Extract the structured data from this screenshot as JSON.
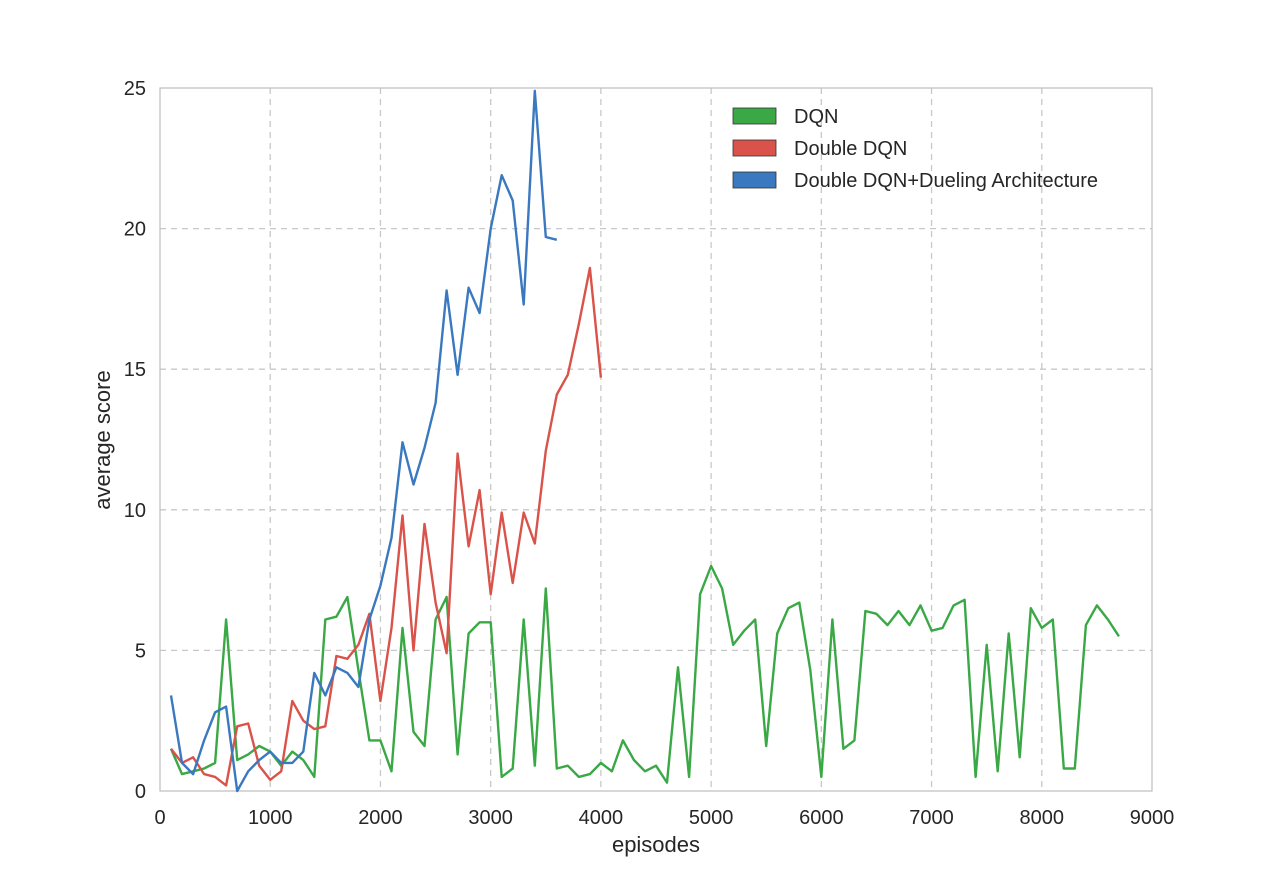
{
  "chart_data": {
    "type": "line",
    "title": "",
    "xlabel": "episodes",
    "ylabel": "average score",
    "xlim": [
      0,
      9000
    ],
    "ylim": [
      0,
      25
    ],
    "xticks": [
      0,
      1000,
      2000,
      3000,
      4000,
      5000,
      6000,
      7000,
      8000,
      9000
    ],
    "yticks": [
      0,
      5,
      10,
      15,
      20,
      25
    ],
    "grid": true,
    "legend_position": "top-right",
    "series": [
      {
        "name": "DQN",
        "color": "#3aa845",
        "x": [
          100,
          200,
          300,
          400,
          500,
          600,
          700,
          800,
          900,
          1000,
          1100,
          1200,
          1300,
          1400,
          1500,
          1600,
          1700,
          1800,
          1900,
          2000,
          2100,
          2200,
          2300,
          2400,
          2500,
          2600,
          2700,
          2800,
          2900,
          3000,
          3100,
          3200,
          3300,
          3400,
          3500,
          3600,
          3700,
          3800,
          3900,
          4000,
          4100,
          4200,
          4300,
          4400,
          4500,
          4600,
          4700,
          4800,
          4900,
          5000,
          5100,
          5200,
          5300,
          5400,
          5500,
          5600,
          5700,
          5800,
          5900,
          6000,
          6100,
          6200,
          6300,
          6400,
          6500,
          6600,
          6700,
          6800,
          6900,
          7000,
          7100,
          7200,
          7300,
          7400,
          7500,
          7600,
          7700,
          7800,
          7900,
          8000,
          8100,
          8200,
          8300,
          8400,
          8500,
          8600,
          8700
        ],
        "values": [
          1.5,
          0.6,
          0.7,
          0.8,
          1.0,
          6.1,
          1.1,
          1.3,
          1.6,
          1.4,
          0.9,
          1.4,
          1.1,
          0.5,
          6.1,
          6.2,
          6.9,
          4.3,
          1.8,
          1.8,
          0.7,
          5.8,
          2.1,
          1.6,
          6.1,
          6.9,
          1.3,
          5.6,
          6.0,
          6.0,
          0.5,
          0.8,
          6.1,
          0.9,
          7.2,
          0.8,
          0.9,
          0.5,
          0.6,
          1.0,
          0.7,
          1.8,
          1.1,
          0.7,
          0.9,
          0.3,
          4.4,
          0.5,
          7.0,
          8.0,
          7.2,
          5.2,
          5.7,
          6.1,
          1.6,
          5.6,
          6.5,
          6.7,
          4.3,
          0.5,
          6.1,
          1.5,
          1.8,
          6.4,
          6.3,
          5.9,
          6.4,
          5.9,
          6.6,
          5.7,
          5.8,
          6.6,
          6.8,
          0.5,
          5.2,
          0.7,
          5.6,
          1.2,
          6.5,
          5.8,
          6.1,
          0.8,
          0.8,
          5.9,
          6.6,
          6.1,
          5.5
        ]
      },
      {
        "name": "Double DQN",
        "color": "#d9534a",
        "x": [
          100,
          200,
          300,
          400,
          500,
          600,
          700,
          800,
          900,
          1000,
          1100,
          1200,
          1300,
          1400,
          1500,
          1600,
          1700,
          1800,
          1900,
          2000,
          2100,
          2200,
          2300,
          2400,
          2500,
          2600,
          2700,
          2800,
          2900,
          3000,
          3100,
          3200,
          3300,
          3400,
          3500,
          3600,
          3700,
          3800,
          3900,
          4000
        ],
        "values": [
          1.5,
          1.0,
          1.2,
          0.6,
          0.5,
          0.2,
          2.3,
          2.4,
          0.9,
          0.4,
          0.7,
          3.2,
          2.5,
          2.2,
          2.3,
          4.8,
          4.7,
          5.2,
          6.3,
          3.2,
          5.8,
          9.8,
          5.0,
          9.5,
          6.7,
          4.9,
          12.0,
          8.7,
          10.7,
          7.0,
          9.9,
          7.4,
          9.9,
          8.8,
          12.1,
          14.1,
          14.8,
          16.6,
          18.6,
          14.7
        ]
      },
      {
        "name": "Double DQN+Dueling Architecture",
        "color": "#3a78bf",
        "x": [
          100,
          200,
          300,
          400,
          500,
          600,
          700,
          800,
          900,
          1000,
          1100,
          1200,
          1300,
          1400,
          1500,
          1600,
          1700,
          1800,
          1900,
          2000,
          2100,
          2200,
          2300,
          2400,
          2500,
          2600,
          2700,
          2800,
          2900,
          3000,
          3100,
          3200,
          3300,
          3400,
          3500,
          3600
        ],
        "values": [
          3.4,
          1.0,
          0.6,
          1.8,
          2.8,
          3.0,
          0.0,
          0.7,
          1.1,
          1.4,
          1.0,
          1.0,
          1.4,
          4.2,
          3.4,
          4.4,
          4.2,
          3.7,
          6.1,
          7.3,
          9.0,
          12.4,
          10.9,
          12.2,
          13.8,
          17.8,
          14.8,
          17.9,
          17.0,
          20.0,
          21.9,
          21.0,
          17.3,
          24.9,
          19.7,
          19.6
        ]
      }
    ]
  }
}
